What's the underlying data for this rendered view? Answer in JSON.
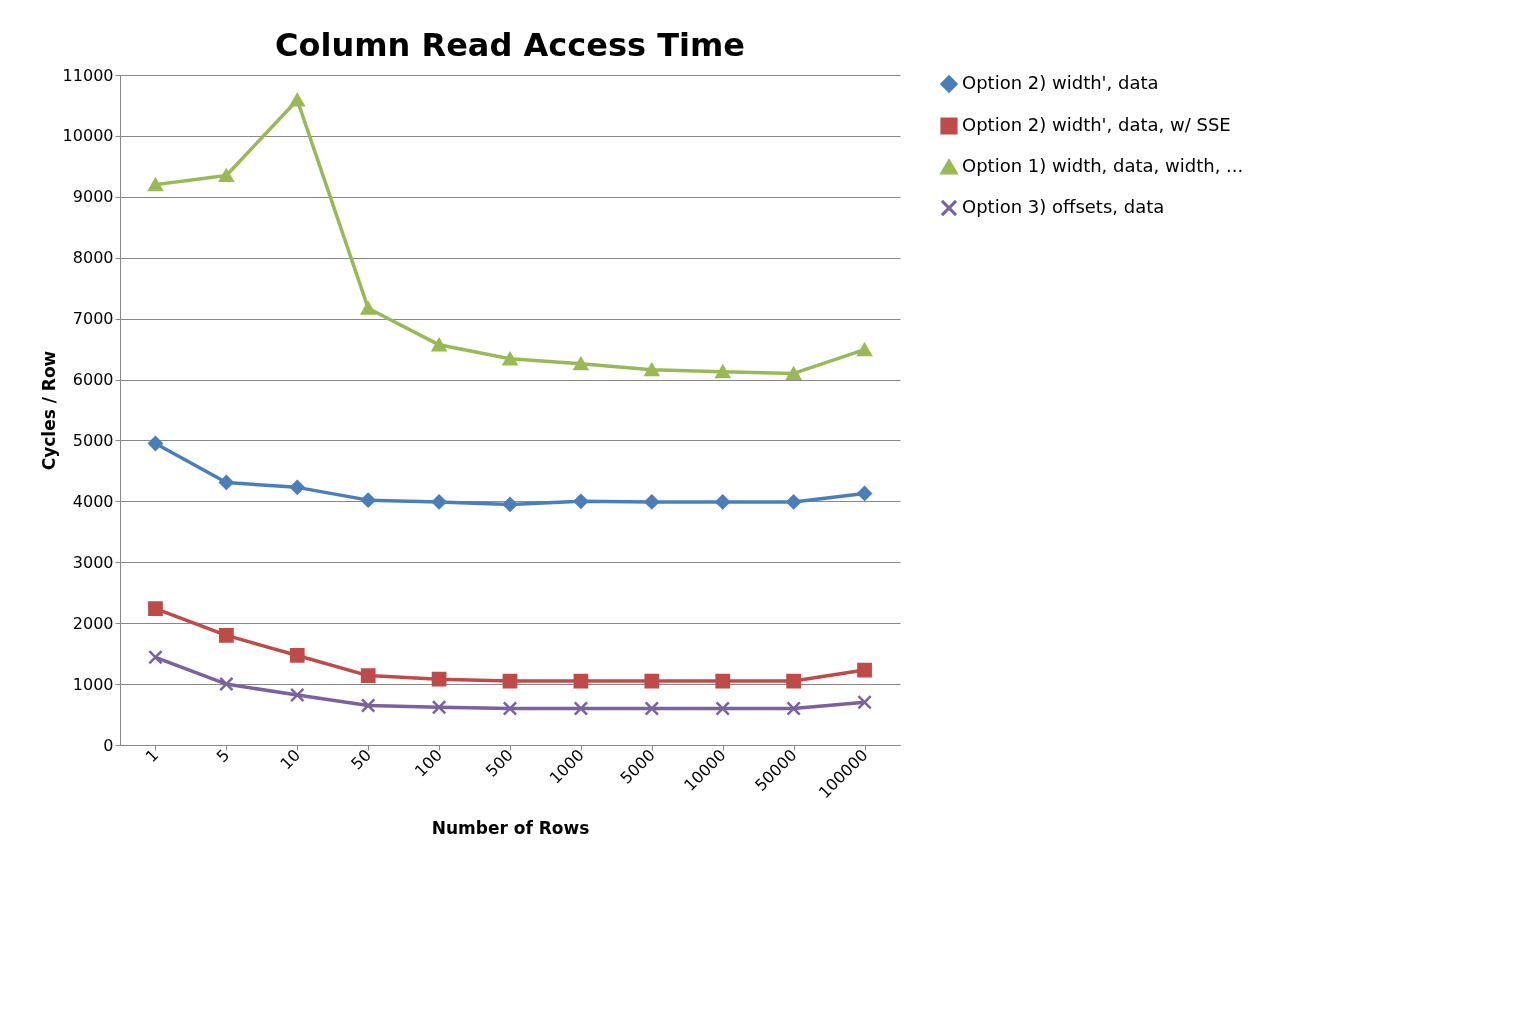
{
  "chart_data": {
    "type": "line",
    "title": "Column Read Access Time",
    "xlabel": "Number of Rows",
    "ylabel": "Cycles / Row",
    "categories": [
      "1",
      "5",
      "10",
      "50",
      "100",
      "500",
      "1000",
      "5000",
      "10000",
      "50000",
      "100000"
    ],
    "series": [
      {
        "name": "Option 2) width', data",
        "color": "#4a7ebb",
        "marker": "diamond",
        "values": [
          4950,
          4310,
          4230,
          4020,
          3990,
          3950,
          4000,
          3990,
          3990,
          3990,
          4130
        ]
      },
      {
        "name": "Option 2) width', data, w/ SSE",
        "color": "#be4b48",
        "marker": "square",
        "values": [
          2240,
          1800,
          1470,
          1140,
          1080,
          1050,
          1050,
          1050,
          1050,
          1050,
          1230
        ]
      },
      {
        "name": "Option 1) width, data, width, ...",
        "color": "#98b954",
        "marker": "triangle",
        "values": [
          9200,
          9350,
          10590,
          7170,
          6570,
          6340,
          6260,
          6160,
          6130,
          6100,
          6490
        ]
      },
      {
        "name": "Option 3) offsets, data",
        "color": "#7d60a0",
        "marker": "cross",
        "values": [
          1440,
          1000,
          820,
          650,
          620,
          600,
          600,
          600,
          600,
          600,
          700
        ]
      }
    ],
    "ylim": [
      0,
      11000
    ],
    "yticks": [
      0,
      1000,
      2000,
      3000,
      4000,
      5000,
      6000,
      7000,
      8000,
      9000,
      10000,
      11000
    ],
    "grid": "y",
    "legend": "right",
    "line_style": "solid"
  }
}
